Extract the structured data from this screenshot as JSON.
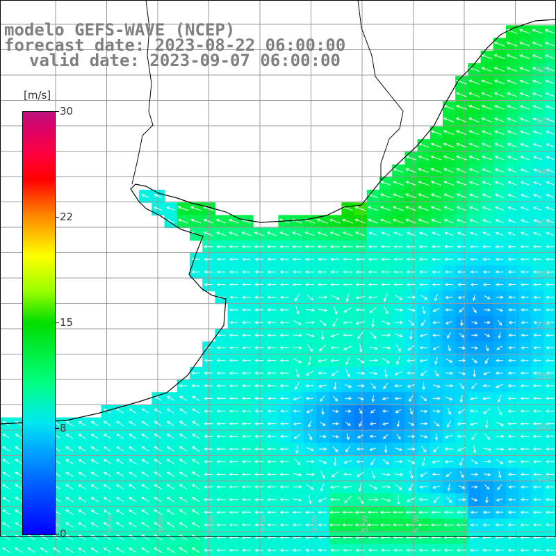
{
  "header": {
    "line1": "modelo GEFS-WAVE (NCEP)",
    "line2": "forecast date: 2023-08-22 06:00:00",
    "line3": "valid date: 2023-09-07 06:00:00",
    "text_color": "#7f7f7f"
  },
  "colorbar": {
    "unit": "[m/s]",
    "ticks": [
      "30",
      "22",
      "15",
      "8",
      "0"
    ],
    "tick_values": [
      30,
      22,
      15,
      8,
      0
    ],
    "range": [
      0,
      30
    ],
    "scale": "blue-cyan-green-yellow-red-magenta"
  },
  "map": {
    "variable": "wind speed and direction",
    "latitude_labels": [
      "32S",
      "33S",
      "34S",
      "35S",
      "36S",
      "37S",
      "38S",
      "39S",
      "40S"
    ],
    "longitude_labels": [
      "58W",
      "57W",
      "56W",
      "55W",
      "54W",
      "53W",
      "52W",
      "51W"
    ],
    "land_color": "#ffffff",
    "grid_color": "#9a9a9a",
    "coast_color": "#000000",
    "arrow_color": "#ffffff",
    "wind_field": {
      "north_east_coast": "green (~12-14 m/s), arrows pointing west/southwest",
      "rio_de_la_plata": "green (~12-14 m/s), arrows pointing west",
      "central_offshore": "blue (~3-6 m/s), light and variable arrows",
      "south_west": "cyan (~8-10 m/s), arrows pointing west/northwest",
      "south_bottom": "green (~11-13 m/s), arrows pointing west"
    }
  }
}
